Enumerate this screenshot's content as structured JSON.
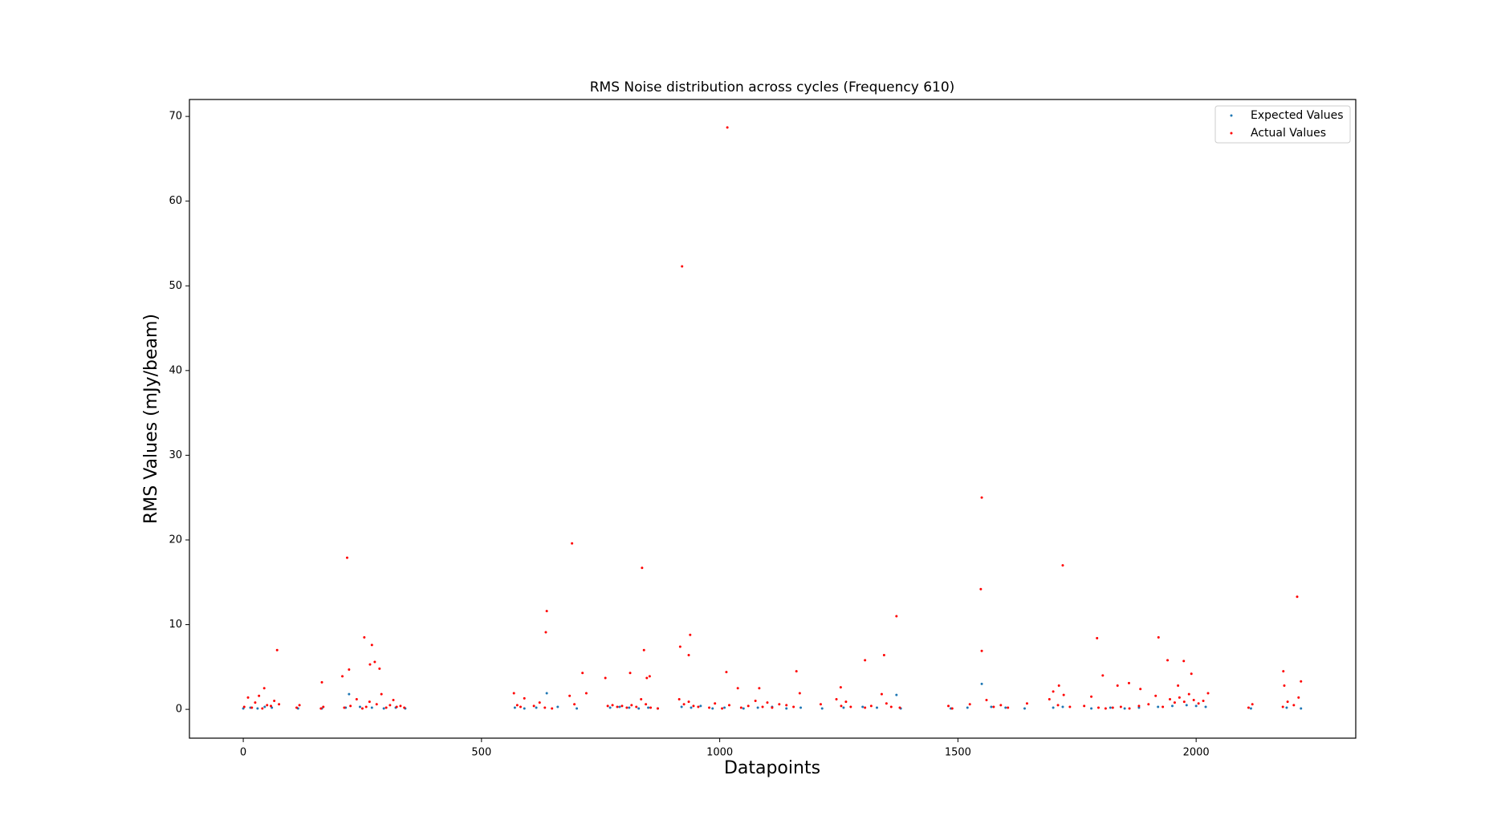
{
  "chart_data": {
    "type": "scatter",
    "title": "RMS Noise distribution across cycles (Frequency 610)",
    "x_label": "Datapoints",
    "y_label": "RMS Values (mJy/beam)",
    "xlim": [
      -113,
      2335
    ],
    "ylim": [
      -3.4,
      72.0
    ],
    "xticks": [
      0,
      500,
      1000,
      1500,
      2000
    ],
    "yticks": [
      0,
      10,
      20,
      30,
      40,
      50,
      60,
      70
    ],
    "grid": false,
    "legend": "upper right",
    "series": [
      {
        "name": "Expected Values",
        "color": "#1f77b4",
        "x": [
          0,
          15,
          30,
          45,
          60,
          115,
          165,
          215,
          222,
          245,
          270,
          295,
          320,
          340,
          570,
          590,
          615,
          637,
          660,
          700,
          770,
          790,
          810,
          830,
          850,
          870,
          920,
          940,
          960,
          985,
          1010,
          1050,
          1080,
          1110,
          1140,
          1170,
          1215,
          1260,
          1300,
          1330,
          1371,
          1380,
          1485,
          1520,
          1550,
          1570,
          1600,
          1640,
          1700,
          1720,
          1780,
          1820,
          1850,
          1880,
          1920,
          1950,
          1980,
          2000,
          2020,
          2115,
          2190,
          2220
        ],
        "values": [
          0.1,
          0.2,
          0.1,
          0.3,
          0.2,
          0.1,
          0.1,
          0.2,
          1.8,
          0.3,
          0.2,
          0.1,
          0.2,
          0.1,
          0.2,
          0.1,
          0.2,
          1.9,
          0.3,
          0.1,
          0.2,
          0.3,
          0.2,
          0.1,
          0.2,
          0.1,
          0.3,
          0.2,
          0.4,
          0.1,
          0.2,
          0.1,
          0.2,
          0.3,
          0.1,
          0.2,
          0.1,
          0.2,
          0.3,
          0.2,
          1.7,
          0.1,
          0.1,
          0.2,
          3.0,
          0.3,
          0.2,
          0.1,
          0.2,
          0.3,
          0.1,
          0.2,
          0.1,
          0.2,
          0.3,
          0.4,
          0.5,
          0.4,
          0.3,
          0.1,
          0.2,
          0.1
        ]
      },
      {
        "name": "Actual Values",
        "color": "#ff0000",
        "x": [
          2,
          10,
          18,
          25,
          33,
          40,
          50,
          58,
          65,
          75,
          112,
          118,
          163,
          168,
          212,
          225,
          238,
          250,
          258,
          265,
          280,
          290,
          300,
          308,
          315,
          322,
          330,
          338,
          568,
          575,
          582,
          590,
          610,
          622,
          633,
          648,
          685,
          695,
          720,
          765,
          775,
          785,
          795,
          805,
          815,
          825,
          835,
          845,
          855,
          870,
          915,
          925,
          935,
          945,
          955,
          978,
          990,
          1005,
          1020,
          1045,
          1060,
          1075,
          1090,
          1100,
          1110,
          1125,
          1140,
          1155,
          1168,
          1212,
          1245,
          1255,
          1265,
          1275,
          1305,
          1318,
          1340,
          1350,
          1360,
          1378,
          1480,
          1488,
          1525,
          1560,
          1575,
          1590,
          1605,
          1645,
          1692,
          1700,
          1710,
          1722,
          1735,
          1765,
          1780,
          1795,
          1810,
          1825,
          1842,
          1860,
          1880,
          1900,
          1915,
          1930,
          1945,
          1955,
          1965,
          1975,
          1985,
          1995,
          2005,
          2015,
          2025,
          2110,
          2118,
          2182,
          2192,
          2205,
          2215,
          1016,
          921,
          1550,
          1548,
          1550,
          218,
          690,
          837,
          1720,
          2212,
          637,
          635,
          1371,
          938,
          254,
          270,
          71,
          1792,
          1921,
          841,
          917,
          935,
          1345,
          1305,
          266,
          276,
          286,
          222,
          208,
          1161,
          1014,
          812,
          712,
          1974,
          1940,
          1990,
          2183,
          2220,
          1804,
          1859,
          165,
          760,
          847,
          853,
          2185,
          44,
          1712,
          1038,
          1083,
          1254,
          1835,
          1883,
          1962
        ],
        "values": [
          0.3,
          1.4,
          0.2,
          0.8,
          1.6,
          0.1,
          0.5,
          0.4,
          1.0,
          0.6,
          0.2,
          0.5,
          0.1,
          0.3,
          0.2,
          0.4,
          1.2,
          0.1,
          0.3,
          0.9,
          0.6,
          1.8,
          0.2,
          0.5,
          1.1,
          0.3,
          0.4,
          0.2,
          1.9,
          0.5,
          0.3,
          1.3,
          0.4,
          0.8,
          0.2,
          0.1,
          1.6,
          0.6,
          1.9,
          0.4,
          0.5,
          0.3,
          0.4,
          0.2,
          0.5,
          0.3,
          1.2,
          0.6,
          0.2,
          0.1,
          1.2,
          0.6,
          0.9,
          0.4,
          0.3,
          0.2,
          0.7,
          0.1,
          0.5,
          0.2,
          0.4,
          1.0,
          0.3,
          0.8,
          0.2,
          0.6,
          0.5,
          0.3,
          1.9,
          0.6,
          1.2,
          0.4,
          0.9,
          0.3,
          0.2,
          0.4,
          1.8,
          0.7,
          0.3,
          0.2,
          0.4,
          0.1,
          0.6,
          1.1,
          0.3,
          0.5,
          0.2,
          0.7,
          1.2,
          2.1,
          0.5,
          1.7,
          0.3,
          0.4,
          1.5,
          0.2,
          0.1,
          0.2,
          0.3,
          0.1,
          0.4,
          0.6,
          1.6,
          0.3,
          1.2,
          0.8,
          1.4,
          0.9,
          1.8,
          1.1,
          0.7,
          1.0,
          1.9,
          0.2,
          0.6,
          0.3,
          0.9,
          0.5,
          1.4,
          68.7,
          52.3,
          25.0,
          14.2,
          6.9,
          17.9,
          19.6,
          16.7,
          17.0,
          13.3,
          11.6,
          9.1,
          11.0,
          8.8,
          8.5,
          7.6,
          7.0,
          8.4,
          8.5,
          7.0,
          7.4,
          6.4,
          6.4,
          5.8,
          5.3,
          5.6,
          4.8,
          4.7,
          3.9,
          4.5,
          4.4,
          4.3,
          4.3,
          5.7,
          5.8,
          4.2,
          4.5,
          3.3,
          4.0,
          3.1,
          3.2,
          3.7,
          3.7,
          3.9,
          2.8,
          2.5,
          2.8,
          2.5,
          2.5,
          2.6,
          2.8,
          2.4,
          2.8
        ]
      }
    ]
  }
}
